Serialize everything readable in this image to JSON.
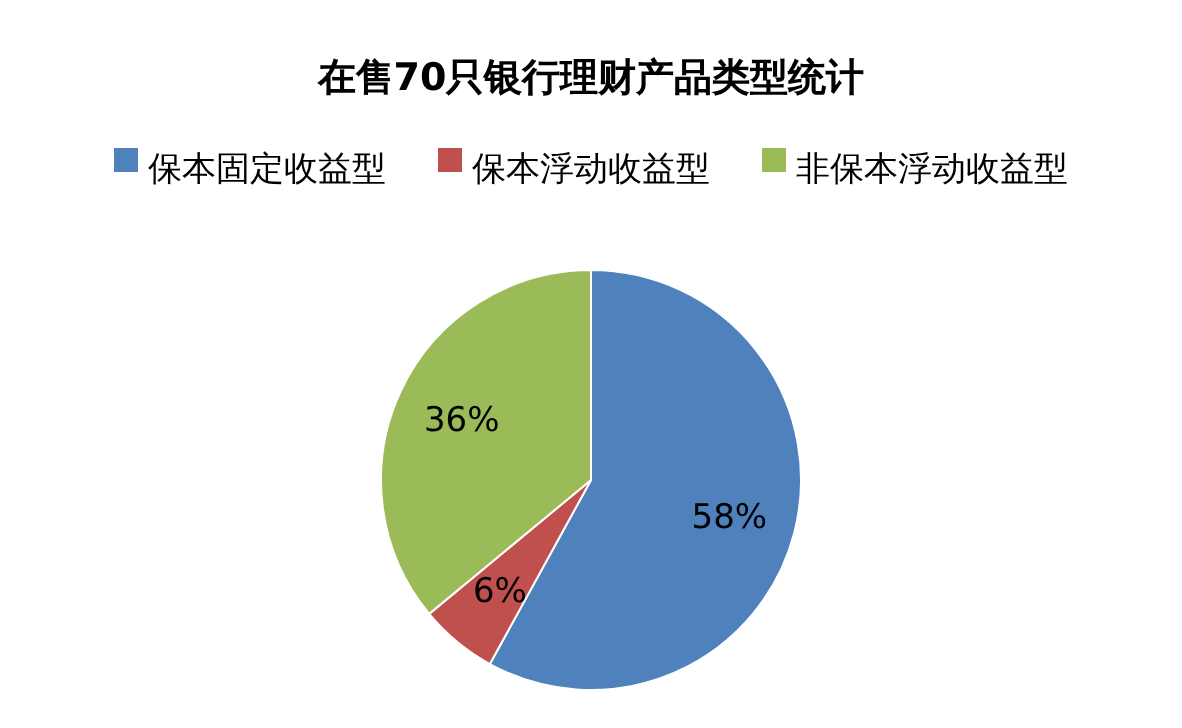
{
  "chart_data": {
    "type": "pie",
    "title": "在售70只银行理财产品类型统计",
    "categories": [
      "保本固定收益型",
      "保本浮动收益型",
      "非保本浮动收益型"
    ],
    "values": [
      58,
      6,
      36
    ],
    "colors": [
      "#4f81bd",
      "#c0504d",
      "#9bbb59"
    ],
    "value_labels": [
      "58%",
      "6%",
      "36%"
    ],
    "legend": "top"
  }
}
